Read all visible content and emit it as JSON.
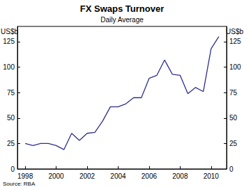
{
  "chart_data": {
    "type": "line",
    "title": "FX Swaps Turnover",
    "subtitle": "Daily Average",
    "y_label": "US$b",
    "y2_label": "US$b",
    "source": "Source: RBA",
    "x": [
      1998,
      1998.5,
      1999,
      1999.5,
      2000,
      2000.5,
      2001,
      2001.5,
      2002,
      2002.5,
      2003,
      2003.5,
      2004,
      2004.5,
      2005,
      2005.5,
      2006,
      2006.5,
      2007,
      2007.5,
      2008,
      2008.5,
      2009,
      2009.5,
      2010,
      2010.5
    ],
    "values": [
      25,
      23,
      25,
      25,
      23,
      19,
      35,
      28,
      35,
      36,
      47,
      61,
      61,
      64,
      70,
      70,
      89,
      92,
      107,
      93,
      92,
      74,
      80,
      76,
      118,
      130
    ],
    "color": "#2e2e8f",
    "xlim": [
      1997.5,
      2011
    ],
    "xticks": [
      1998,
      2000,
      2002,
      2004,
      2006,
      2008,
      2010
    ],
    "ylim": [
      0,
      140
    ],
    "yticks": [
      0,
      25,
      50,
      75,
      100,
      125
    ],
    "y2lim": [
      0,
      140
    ],
    "y2ticks": [
      0,
      25,
      50,
      75,
      100,
      125
    ],
    "grid": false
  }
}
